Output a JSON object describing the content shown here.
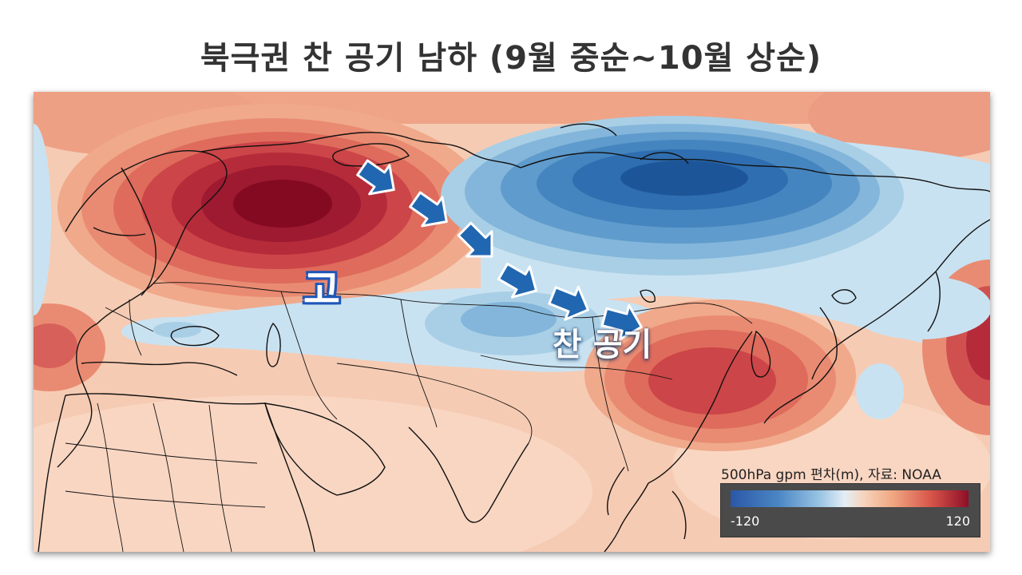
{
  "title": "북극권 찬 공기 남하 (9월 중순~10월 상순)",
  "map": {
    "labels": {
      "high_pressure": "고",
      "cold_air": "찬 공기"
    },
    "arrow_icon": "arrow-right-icon",
    "colors": {
      "strong_positive": "#8f0e26",
      "positive": "#d8564a",
      "weak_positive": "#f6c9ae",
      "neutral": "#f8dccb",
      "weak_negative": "#c9e2f1",
      "negative": "#4a86c4",
      "strong_negative": "#1d4f93"
    }
  },
  "legend": {
    "title": "500hPa gpm 편차(m), 자료: NOAA",
    "min": "-120",
    "max": "120"
  }
}
